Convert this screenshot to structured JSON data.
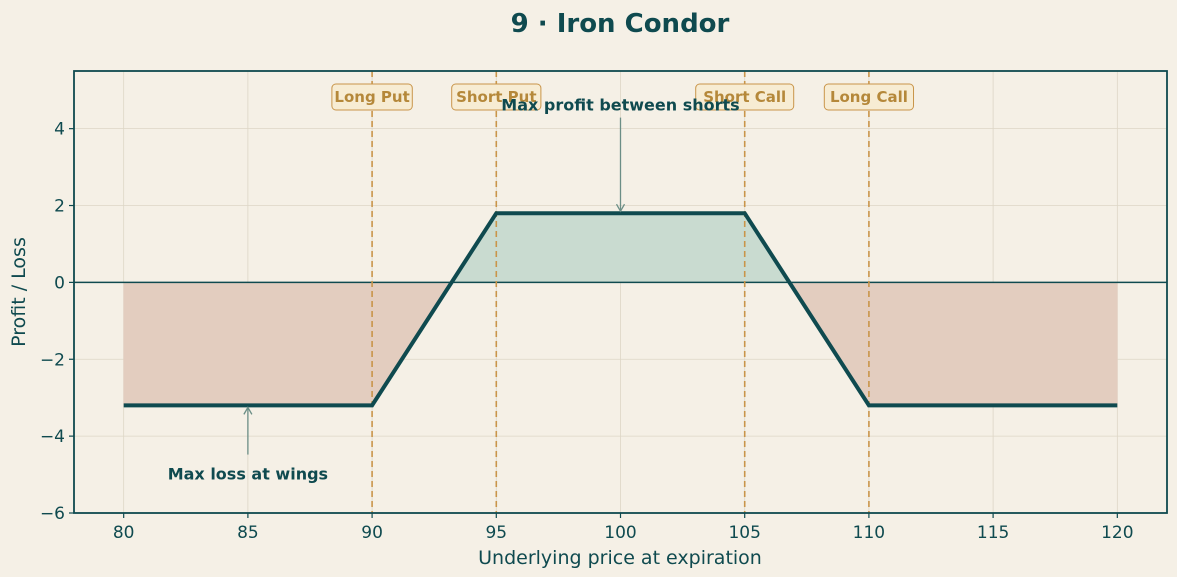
{
  "chart_data": {
    "type": "line",
    "title": "9 · Iron Condor",
    "xlabel": "Underlying price at expiration",
    "ylabel": "Profit / Loss",
    "xlim": [
      78,
      122
    ],
    "ylim": [
      -6,
      5.5
    ],
    "xticks": [
      80,
      85,
      90,
      95,
      100,
      105,
      110,
      115,
      120
    ],
    "yticks": [
      -6,
      -4,
      -2,
      0,
      2,
      4
    ],
    "grid": true,
    "series": [
      {
        "x": [
          80,
          90,
          95,
          105,
          110,
          120
        ],
        "y": [
          -3.2,
          -3.2,
          1.8,
          1.8,
          -3.2,
          -3.2
        ]
      }
    ],
    "strikes": [
      {
        "label": "Long Put",
        "x": 90
      },
      {
        "label": "Short Put",
        "x": 95
      },
      {
        "label": "Short Call",
        "x": 105
      },
      {
        "label": "Long Call",
        "x": 110
      }
    ],
    "annotations": [
      {
        "text": "Max profit between shorts",
        "point": [
          100,
          1.8
        ],
        "text_at": [
          100,
          4.6
        ]
      },
      {
        "text": "Max loss at wings",
        "point": [
          85,
          -3.2
        ],
        "text_at": [
          85,
          -5.0
        ]
      }
    ],
    "colors": {
      "line": "#0f4a4f",
      "profit_fill": "#c9dbd0",
      "loss_fill": "#e3cdbf",
      "strike": "#c9954a",
      "axis": "#0f4a4f",
      "background": "#f5f0e6"
    }
  }
}
